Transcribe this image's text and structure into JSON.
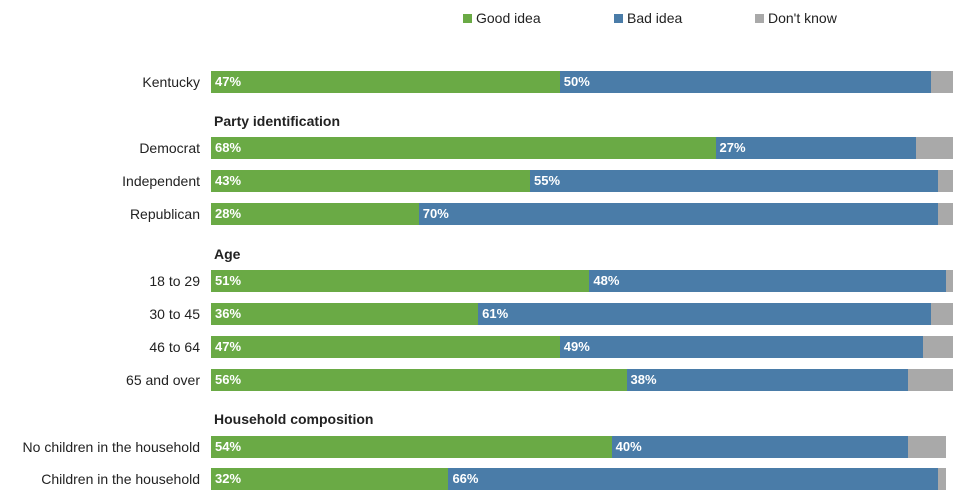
{
  "colors": {
    "good": "#6aaa45",
    "bad": "#4a7ca8",
    "dont_know": "#a9a9a9"
  },
  "legend": {
    "good": "Good idea",
    "bad": "Bad idea",
    "dont_know": "Don't know"
  },
  "chart_data": {
    "type": "bar",
    "orientation": "horizontal",
    "stacked": true,
    "legend_position": "top",
    "grid": false,
    "xlim": [
      0,
      100
    ],
    "series_keys": [
      "good",
      "bad",
      "dont_know"
    ],
    "rows": [
      {
        "kind": "bar",
        "label": "Kentucky",
        "good": 47,
        "bad": 50,
        "dont_know": 3,
        "good_label": "47%",
        "bad_label": "50%"
      },
      {
        "kind": "header",
        "label": "Party identification"
      },
      {
        "kind": "bar",
        "label": "Democrat",
        "good": 68,
        "bad": 27,
        "dont_know": 5,
        "good_label": "68%",
        "bad_label": "27%"
      },
      {
        "kind": "bar",
        "label": "Independent",
        "good": 43,
        "bad": 55,
        "dont_know": 2,
        "good_label": "43%",
        "bad_label": "55%"
      },
      {
        "kind": "bar",
        "label": "Republican",
        "good": 28,
        "bad": 70,
        "dont_know": 2,
        "good_label": "28%",
        "bad_label": "70%"
      },
      {
        "kind": "header",
        "label": "Age"
      },
      {
        "kind": "bar",
        "label": "18 to 29",
        "good": 51,
        "bad": 48,
        "dont_know": 2,
        "good_label": "51%",
        "bad_label": "48%"
      },
      {
        "kind": "bar",
        "label": "30 to 45",
        "good": 36,
        "bad": 61,
        "dont_know": 3,
        "good_label": "36%",
        "bad_label": "61%"
      },
      {
        "kind": "bar",
        "label": "46 to 64",
        "good": 47,
        "bad": 49,
        "dont_know": 4,
        "good_label": "47%",
        "bad_label": "49%"
      },
      {
        "kind": "bar",
        "label": "65 and over",
        "good": 56,
        "bad": 38,
        "dont_know": 6,
        "good_label": "56%",
        "bad_label": "38%"
      },
      {
        "kind": "header",
        "label": "Household composition"
      },
      {
        "kind": "bar",
        "label": "No children in the household",
        "good": 54,
        "bad": 40,
        "dont_know": 5,
        "good_label": "54%",
        "bad_label": "40%"
      },
      {
        "kind": "bar",
        "label": "Children in the household",
        "good": 32,
        "bad": 66,
        "dont_know": 1,
        "good_label": "32%",
        "bad_label": "66%"
      }
    ]
  }
}
